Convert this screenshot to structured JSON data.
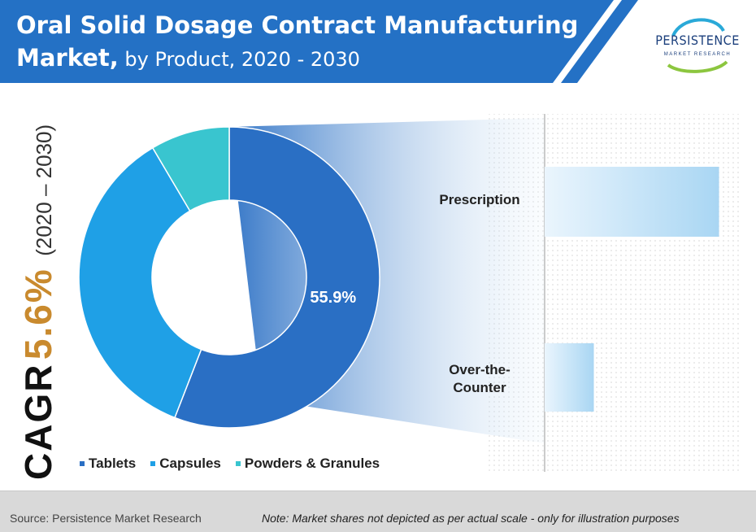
{
  "header": {
    "title_line1": "Oral Solid Dosage Contract Manufacturing",
    "title_bold": "Market,",
    "title_rest": " by Product, 2020 - 2030"
  },
  "logo": {
    "name": "PERSISTENCE",
    "sub": "MARKET RESEARCH"
  },
  "cagr": {
    "label": "CAGR",
    "value": "5.6%",
    "period": "(2020 – 2030)"
  },
  "colors": {
    "header_bg": "#2471c5",
    "tablets": "#2a6fc4",
    "capsules": "#1fa0e6",
    "powders": "#39c5cf",
    "bar": "#bfe0f6",
    "cagr_value": "#c98a2e"
  },
  "chart_data": [
    {
      "type": "pie",
      "categories": [
        "Tablets",
        "Capsules",
        "Powders & Granules"
      ],
      "values": [
        55.9,
        35.6,
        8.5
      ],
      "data_labels": [
        "55.9%",
        "",
        ""
      ],
      "legend_position": "bottom"
    },
    {
      "type": "bar",
      "orientation": "horizontal",
      "categories": [
        "Prescription",
        "Over-the-Counter"
      ],
      "values": [
        78,
        22
      ]
    }
  ],
  "legend": {
    "items": [
      "Tablets",
      "Capsules",
      "Powders & Granules"
    ]
  },
  "bars": {
    "labels": [
      "Prescription",
      "Over-the-\nCounter"
    ]
  },
  "footer": {
    "source": "Source: Persistence Market Research",
    "note": "Note: Market shares not depicted as per actual scale - only for illustration purposes"
  }
}
